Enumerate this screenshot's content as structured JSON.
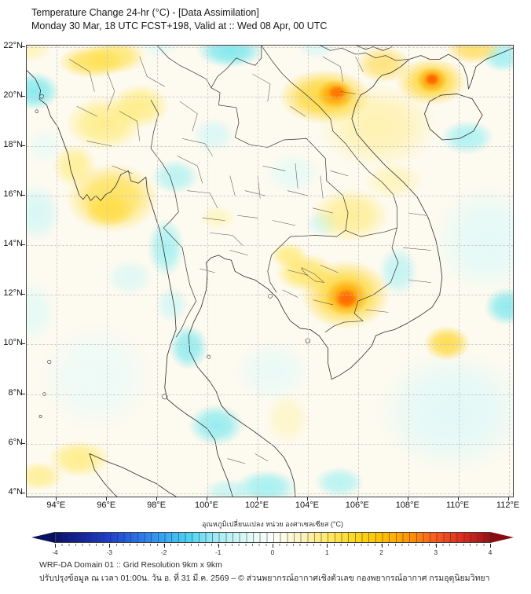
{
  "title": {
    "line1": "Temperature Change 24-hr (°C) - [Data Assimilation]",
    "line2": "Monday 30 Mar, 18 UTC FCST+198, Valid at :: Wed 08 Apr, 00 UTC"
  },
  "map": {
    "extent": {
      "lon_min": 92.8,
      "lon_max": 112.17,
      "lat_min": 3.87,
      "lat_max": 22.05
    },
    "lon_ticks": [
      {
        "value": 94,
        "label": "94°E"
      },
      {
        "value": 96,
        "label": "96°E"
      },
      {
        "value": 98,
        "label": "98°E"
      },
      {
        "value": 100,
        "label": "100°E"
      },
      {
        "value": 102,
        "label": "102°E"
      },
      {
        "value": 104,
        "label": "104°E"
      },
      {
        "value": 106,
        "label": "106°E"
      },
      {
        "value": 108,
        "label": "108°E"
      },
      {
        "value": 110,
        "label": "110°E"
      },
      {
        "value": 112,
        "label": "112°E"
      }
    ],
    "lat_ticks": [
      {
        "value": 22,
        "label": "22°N"
      },
      {
        "value": 20,
        "label": "20°N"
      },
      {
        "value": 18,
        "label": "18°N"
      },
      {
        "value": 16,
        "label": "16°N"
      },
      {
        "value": 14,
        "label": "14°N"
      },
      {
        "value": 12,
        "label": "12°N"
      },
      {
        "value": 10,
        "label": "10°N"
      },
      {
        "value": 8,
        "label": "8°N"
      },
      {
        "value": 6,
        "label": "6°N"
      },
      {
        "value": 4,
        "label": "4°N"
      }
    ],
    "base_color": "#fdfaef",
    "anomaly_blobs": [
      {
        "lon": 105.55,
        "lat": 11.85,
        "rx": 0.62,
        "ry": 0.55,
        "c": "#ff6400",
        "a": 0.95,
        "v": 3.2
      },
      {
        "lon": 105.55,
        "lat": 11.9,
        "rx": 1.15,
        "ry": 1.0,
        "c": "#ffa000",
        "a": 0.9,
        "v": 2.5
      },
      {
        "lon": 105.5,
        "lat": 12.0,
        "rx": 2.4,
        "ry": 1.9,
        "c": "#ffd21f",
        "a": 0.85,
        "v": 1.5
      },
      {
        "lon": 105.15,
        "lat": 20.15,
        "rx": 0.5,
        "ry": 0.4,
        "c": "#ff7000",
        "a": 0.95,
        "v": 3.0
      },
      {
        "lon": 105.1,
        "lat": 20.1,
        "rx": 1.0,
        "ry": 0.8,
        "c": "#ffa000",
        "a": 0.9,
        "v": 2.5
      },
      {
        "lon": 104.7,
        "lat": 20.0,
        "rx": 2.5,
        "ry": 1.5,
        "c": "#ffd21f",
        "a": 0.85,
        "v": 1.5
      },
      {
        "lon": 108.95,
        "lat": 20.7,
        "rx": 0.42,
        "ry": 0.35,
        "c": "#ff5c00",
        "a": 0.95,
        "v": 3.2
      },
      {
        "lon": 108.95,
        "lat": 20.65,
        "rx": 0.85,
        "ry": 0.7,
        "c": "#ffa000",
        "a": 0.9,
        "v": 2.5
      },
      {
        "lon": 108.9,
        "lat": 20.6,
        "rx": 1.9,
        "ry": 1.3,
        "c": "#ffd21f",
        "a": 0.8,
        "v": 1.5
      },
      {
        "lon": 95.4,
        "lat": 21.4,
        "rx": 1.8,
        "ry": 0.9,
        "c": "#ffdf4a",
        "a": 0.85,
        "v": 1.2
      },
      {
        "lon": 96.3,
        "lat": 21.6,
        "rx": 1.7,
        "ry": 0.95,
        "c": "#ffe14d",
        "a": 0.75,
        "v": 1.0
      },
      {
        "lon": 97.3,
        "lat": 19.6,
        "rx": 1.6,
        "ry": 1.2,
        "c": "#ffe863",
        "a": 0.7,
        "v": 0.8
      },
      {
        "lon": 95.9,
        "lat": 18.9,
        "rx": 2.1,
        "ry": 1.5,
        "c": "#ffe863",
        "a": 0.7,
        "v": 0.8
      },
      {
        "lon": 96.2,
        "lat": 15.9,
        "rx": 2.5,
        "ry": 1.9,
        "c": "#ffde45",
        "a": 0.85,
        "v": 1.2
      },
      {
        "lon": 96.1,
        "lat": 15.4,
        "rx": 1.3,
        "ry": 0.9,
        "c": "#ffd21f",
        "a": 0.7,
        "v": 1.5
      },
      {
        "lon": 94.7,
        "lat": 17.2,
        "rx": 1.2,
        "ry": 1.2,
        "c": "#ffe863",
        "a": 0.6,
        "v": 0.8
      },
      {
        "lon": 110.6,
        "lat": 21.95,
        "rx": 1.5,
        "ry": 0.9,
        "c": "#ffd94d",
        "a": 0.8,
        "v": 1.2
      },
      {
        "lon": 107.0,
        "lat": 21.3,
        "rx": 1.5,
        "ry": 1.0,
        "c": "#ffd94d",
        "a": 0.7,
        "v": 1.0
      },
      {
        "lon": 103.9,
        "lat": 12.9,
        "rx": 1.6,
        "ry": 1.05,
        "c": "#ffe14d",
        "a": 0.75,
        "v": 1.0
      },
      {
        "lon": 105.7,
        "lat": 15.2,
        "rx": 2.1,
        "ry": 1.5,
        "c": "#ffe86a",
        "a": 0.65,
        "v": 0.8
      },
      {
        "lon": 109.55,
        "lat": 10.05,
        "rx": 1.25,
        "ry": 0.95,
        "c": "#ffd21f",
        "a": 0.75,
        "v": 1.3
      },
      {
        "lon": 94.9,
        "lat": 5.4,
        "rx": 1.7,
        "ry": 1.0,
        "c": "#ffe863",
        "a": 0.7,
        "v": 0.9
      },
      {
        "lon": 93.3,
        "lat": 4.7,
        "rx": 1.3,
        "ry": 0.8,
        "c": "#ffe863",
        "a": 0.6,
        "v": 0.8
      },
      {
        "lon": 103.25,
        "lat": 13.6,
        "rx": 1.0,
        "ry": 0.7,
        "c": "#ffe863",
        "a": 0.7,
        "v": 0.9
      },
      {
        "lon": 100.4,
        "lat": 15.1,
        "rx": 1.0,
        "ry": 0.65,
        "c": "#fff3a8",
        "a": 0.6,
        "v": 0.5
      },
      {
        "lon": 92.95,
        "lat": 21.9,
        "rx": 1.1,
        "ry": 0.7,
        "c": "#fff0a0",
        "a": 0.6,
        "v": 0.5
      },
      {
        "lon": 107.4,
        "lat": 16.6,
        "rx": 1.6,
        "ry": 1.0,
        "c": "#ffef96",
        "a": 0.55,
        "v": 0.6
      },
      {
        "lon": 103.2,
        "lat": 7.0,
        "rx": 1.2,
        "ry": 1.4,
        "c": "#fdf3b0",
        "a": 0.6,
        "v": 0.4
      },
      {
        "lon": 106.8,
        "lat": 18.8,
        "rx": 3.2,
        "ry": 2.3,
        "c": "#ffeb80",
        "a": 0.55,
        "v": 0.7
      },
      {
        "lon": 93.1,
        "lat": 20.2,
        "rx": 1.35,
        "ry": 1.05,
        "c": "#78e7ef",
        "a": 0.85,
        "v": -1.2
      },
      {
        "lon": 100.9,
        "lat": 21.85,
        "rx": 1.8,
        "ry": 0.95,
        "c": "#6fe5ee",
        "a": 0.85,
        "v": -1.3
      },
      {
        "lon": 104.35,
        "lat": 21.95,
        "rx": 1.0,
        "ry": 0.6,
        "c": "#cdf6f8",
        "a": 0.6,
        "v": -0.4
      },
      {
        "lon": 98.1,
        "lat": 22.0,
        "rx": 1.0,
        "ry": 0.6,
        "c": "#d9f9fa",
        "a": 0.6,
        "v": -0.3
      },
      {
        "lon": 111.75,
        "lat": 21.6,
        "rx": 1.15,
        "ry": 0.85,
        "c": "#8feef2",
        "a": 0.8,
        "v": -1.0
      },
      {
        "lon": 110.35,
        "lat": 18.35,
        "rx": 1.45,
        "ry": 0.95,
        "c": "#9df0f3",
        "a": 0.8,
        "v": -0.8
      },
      {
        "lon": 111.95,
        "lat": 11.55,
        "rx": 1.25,
        "ry": 1.05,
        "c": "#7de8ef",
        "a": 0.85,
        "v": -1.2
      },
      {
        "lon": 107.6,
        "lat": 12.95,
        "rx": 1.05,
        "ry": 1.35,
        "c": "#aaf1f4",
        "a": 0.7,
        "v": -0.6
      },
      {
        "lon": 98.7,
        "lat": 16.75,
        "rx": 1.3,
        "ry": 0.95,
        "c": "#a5f0f3",
        "a": 0.75,
        "v": -0.7
      },
      {
        "lon": 98.35,
        "lat": 13.9,
        "rx": 1.0,
        "ry": 1.6,
        "c": "#8feef2",
        "a": 0.75,
        "v": -0.9
      },
      {
        "lon": 99.25,
        "lat": 9.9,
        "rx": 1.05,
        "ry": 1.25,
        "c": "#7de8ef",
        "a": 0.8,
        "v": -1.1
      },
      {
        "lon": 98.6,
        "lat": 11.6,
        "rx": 0.9,
        "ry": 1.0,
        "c": "#bff4f6",
        "a": 0.6,
        "v": -0.5
      },
      {
        "lon": 100.35,
        "lat": 6.75,
        "rx": 1.5,
        "ry": 1.15,
        "c": "#7de8ef",
        "a": 0.8,
        "v": -1.1
      },
      {
        "lon": 93.2,
        "lat": 15.3,
        "rx": 1.3,
        "ry": 1.6,
        "c": "#c9f6f8",
        "a": 0.7,
        "v": -0.4
      },
      {
        "lon": 93.0,
        "lat": 11.3,
        "rx": 1.3,
        "ry": 1.7,
        "c": "#d9f9fa",
        "a": 0.65,
        "v": -0.3
      },
      {
        "lon": 102.35,
        "lat": 4.25,
        "rx": 1.7,
        "ry": 0.95,
        "c": "#8feef2",
        "a": 0.8,
        "v": -0.9
      },
      {
        "lon": 105.25,
        "lat": 4.45,
        "rx": 1.35,
        "ry": 0.85,
        "c": "#9df0f3",
        "a": 0.7,
        "v": -0.7
      },
      {
        "lon": 100.8,
        "lat": 4.1,
        "rx": 1.3,
        "ry": 0.7,
        "c": "#aaf1f4",
        "a": 0.6,
        "v": -0.6
      },
      {
        "lon": 104.6,
        "lat": 14.9,
        "rx": 0.95,
        "ry": 0.75,
        "c": "#c9f6f8",
        "a": 0.7,
        "v": -0.4
      },
      {
        "lon": 103.4,
        "lat": 16.9,
        "rx": 1.5,
        "ry": 1.15,
        "c": "#d9f9fa",
        "a": 0.6,
        "v": -0.3
      },
      {
        "lon": 100.25,
        "lat": 18.45,
        "rx": 1.15,
        "ry": 0.95,
        "c": "#c9f6f8",
        "a": 0.65,
        "v": -0.4
      },
      {
        "lon": 96.9,
        "lat": 12.7,
        "rx": 1.3,
        "ry": 1.0,
        "c": "#cdf6f8",
        "a": 0.6,
        "v": -0.4
      },
      {
        "lon": 93.5,
        "lat": 18.0,
        "rx": 1.0,
        "ry": 1.0,
        "c": "#e2fafa",
        "a": 0.6,
        "v": -0.2
      },
      {
        "lon": 102.6,
        "lat": 8.9,
        "rx": 2.1,
        "ry": 1.7,
        "c": "#e2fafa",
        "a": 0.7,
        "v": -0.3
      },
      {
        "lon": 109.8,
        "lat": 7.3,
        "rx": 4.2,
        "ry": 3.4,
        "c": "#dcf8f9",
        "a": 0.8,
        "v": -0.3
      },
      {
        "lon": 111.2,
        "lat": 14.2,
        "rx": 3.1,
        "ry": 3.0,
        "c": "#def9f9",
        "a": 0.8,
        "v": -0.3
      },
      {
        "lon": 95.6,
        "lat": 8.7,
        "rx": 3.1,
        "ry": 2.9,
        "c": "#e6fbfb",
        "a": 0.7,
        "v": -0.2
      }
    ]
  },
  "colorbar": {
    "label": "อุณหภูมิเปลี่ยนแปลง หน่วย องศาเซลเซียส (°C)",
    "range": [
      -4,
      4
    ],
    "ticks": [
      -4,
      -3,
      -2,
      -1,
      0,
      1,
      2,
      3,
      4
    ],
    "stops": [
      {
        "v": -4,
        "c": "#0b1172"
      },
      {
        "v": -3.5,
        "c": "#15269f"
      },
      {
        "v": -3,
        "c": "#1e42cf"
      },
      {
        "v": -2.5,
        "c": "#2a72e8"
      },
      {
        "v": -2,
        "c": "#36a7f5"
      },
      {
        "v": -1.5,
        "c": "#52d7f2"
      },
      {
        "v": -1,
        "c": "#a7edf2"
      },
      {
        "v": -0.5,
        "c": "#dcf8f6"
      },
      {
        "v": 0,
        "c": "#fcfefb"
      },
      {
        "v": 0.5,
        "c": "#fcf4c6"
      },
      {
        "v": 1,
        "c": "#ffe96a"
      },
      {
        "v": 1.5,
        "c": "#ffd81e"
      },
      {
        "v": 2,
        "c": "#fec200"
      },
      {
        "v": 2.5,
        "c": "#fe9702"
      },
      {
        "v": 3,
        "c": "#fb5c1c"
      },
      {
        "v": 3.5,
        "c": "#dd2d20"
      },
      {
        "v": 4,
        "c": "#9d1113"
      }
    ],
    "left_arrow_color": "#070f5e",
    "right_arrow_color": "#860c10"
  },
  "footer": {
    "line1": "WRF-DA Domain 01 :: Grid Resolution 9km x 9km",
    "line2": "ปรับปรุงข้อมูล ณ เวลา 01:00น. วัน อ. ที่ 31 มี.ค. 2569 – © ส่วนพยากรณ์อากาศเชิงตัวเลข กองพยากรณ์อากาศ กรมอุตุนิยมวิทยา"
  }
}
